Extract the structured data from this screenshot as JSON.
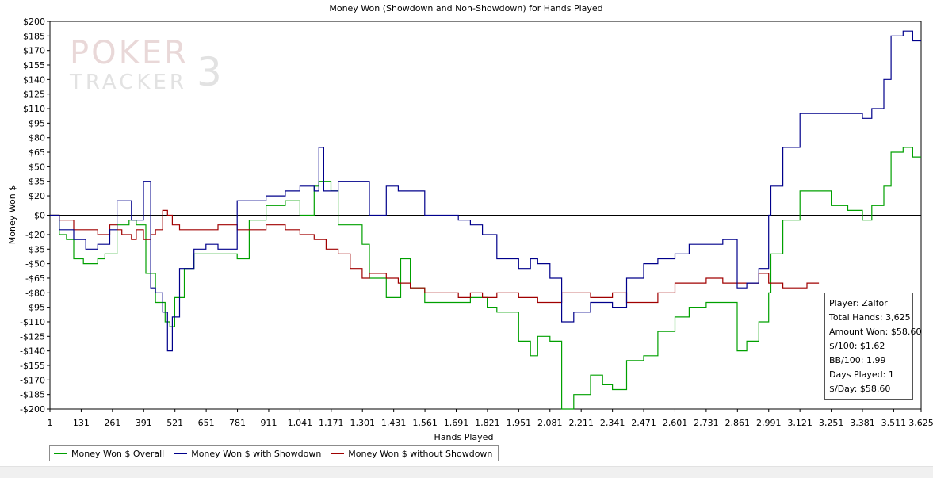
{
  "chart_data": {
    "type": "line",
    "title": "Money Won (Showdown and Non-Showdown) for Hands Played",
    "xlabel": "Hands Played",
    "ylabel": "Money Won $",
    "xlim": [
      1,
      3625
    ],
    "ylim": [
      -200,
      200
    ],
    "x_ticks": [
      1,
      131,
      261,
      391,
      521,
      651,
      781,
      911,
      1041,
      1171,
      1301,
      1431,
      1561,
      1691,
      1821,
      1951,
      2081,
      2211,
      2341,
      2471,
      2601,
      2731,
      2861,
      2991,
      3121,
      3251,
      3381,
      3511,
      3625
    ],
    "x_tick_labels": [
      "1",
      "131",
      "261",
      "391",
      "521",
      "651",
      "781",
      "911",
      "1,041",
      "1,171",
      "1,301",
      "1,431",
      "1,561",
      "1,691",
      "1,821",
      "1,951",
      "2,081",
      "2,211",
      "2,341",
      "2,471",
      "2,601",
      "2,731",
      "2,861",
      "2,991",
      "3,121",
      "3,251",
      "3,381",
      "3,511",
      "3,625"
    ],
    "y_ticks": [
      200,
      185,
      170,
      155,
      140,
      125,
      110,
      95,
      80,
      65,
      50,
      35,
      20,
      0,
      -20,
      -35,
      -50,
      -65,
      -80,
      -95,
      -110,
      -125,
      -140,
      -155,
      -170,
      -185,
      -200
    ],
    "y_tick_labels": [
      "$200",
      "$185",
      "$170",
      "$155",
      "$140",
      "$125",
      "$110",
      "$95",
      "$80",
      "$65",
      "$50",
      "$35",
      "$20",
      "$0",
      "-$20",
      "-$35",
      "-$50",
      "-$65",
      "-$80",
      "-$95",
      "-$110",
      "-$125",
      "-$140",
      "-$155",
      "-$170",
      "-$185",
      "-$200"
    ],
    "zero_line": true,
    "grid": false,
    "legend_position": "bottom-left",
    "series": [
      {
        "name": "Money Won $ Overall",
        "color": "#00a000",
        "x": [
          1,
          40,
          70,
          100,
          140,
          200,
          230,
          280,
          330,
          360,
          400,
          440,
          480,
          500,
          520,
          560,
          600,
          650,
          700,
          780,
          830,
          900,
          980,
          1041,
          1100,
          1120,
          1170,
          1200,
          1300,
          1330,
          1400,
          1460,
          1500,
          1560,
          1600,
          1700,
          1750,
          1820,
          1860,
          1951,
          2000,
          2030,
          2081,
          2130,
          2180,
          2250,
          2300,
          2341,
          2400,
          2471,
          2530,
          2601,
          2660,
          2731,
          2800,
          2860,
          2900,
          2950,
          2991,
          3000,
          3050,
          3121,
          3200,
          3251,
          3320,
          3381,
          3420,
          3470,
          3500,
          3550,
          3590,
          3625
        ],
        "y": [
          0,
          -20,
          -25,
          -45,
          -50,
          -45,
          -40,
          -10,
          -5,
          -10,
          -60,
          -90,
          -110,
          -115,
          -85,
          -55,
          -40,
          -40,
          -40,
          -45,
          -5,
          10,
          15,
          0,
          30,
          35,
          25,
          -10,
          -30,
          -65,
          -85,
          -45,
          -75,
          -90,
          -90,
          -90,
          -85,
          -95,
          -100,
          -130,
          -145,
          -125,
          -130,
          -200,
          -185,
          -165,
          -175,
          -180,
          -150,
          -145,
          -120,
          -105,
          -95,
          -90,
          -90,
          -140,
          -130,
          -110,
          -80,
          -40,
          -5,
          25,
          25,
          10,
          5,
          -5,
          10,
          30,
          65,
          70,
          60,
          60
        ]
      },
      {
        "name": "Money Won $ with Showdown",
        "color": "#00008b",
        "x": [
          1,
          40,
          100,
          150,
          200,
          250,
          280,
          300,
          340,
          360,
          390,
          420,
          440,
          470,
          490,
          510,
          540,
          600,
          650,
          700,
          780,
          830,
          900,
          980,
          1041,
          1100,
          1120,
          1140,
          1200,
          1300,
          1330,
          1400,
          1450,
          1500,
          1560,
          1600,
          1700,
          1750,
          1800,
          1860,
          1951,
          2000,
          2030,
          2081,
          2130,
          2180,
          2250,
          2341,
          2400,
          2471,
          2530,
          2601,
          2660,
          2731,
          2800,
          2860,
          2900,
          2950,
          2991,
          3000,
          3050,
          3121,
          3200,
          3251,
          3320,
          3381,
          3420,
          3470,
          3500,
          3550,
          3590,
          3625
        ],
        "y": [
          0,
          -15,
          -25,
          -35,
          -30,
          -15,
          15,
          15,
          -5,
          -5,
          35,
          -75,
          -80,
          -100,
          -140,
          -105,
          -55,
          -35,
          -30,
          -35,
          15,
          15,
          20,
          25,
          30,
          25,
          70,
          25,
          35,
          35,
          0,
          30,
          25,
          25,
          0,
          0,
          -5,
          -10,
          -20,
          -45,
          -55,
          -45,
          -50,
          -65,
          -110,
          -100,
          -90,
          -95,
          -65,
          -50,
          -45,
          -40,
          -30,
          -30,
          -25,
          -75,
          -70,
          -55,
          0,
          30,
          70,
          105,
          105,
          105,
          105,
          100,
          110,
          140,
          185,
          190,
          180,
          180
        ]
      },
      {
        "name": "Money Won $ without Showdown",
        "color": "#a00000",
        "x": [
          1,
          40,
          100,
          150,
          200,
          250,
          280,
          300,
          340,
          360,
          390,
          420,
          440,
          470,
          490,
          510,
          540,
          600,
          650,
          700,
          780,
          830,
          900,
          980,
          1041,
          1100,
          1150,
          1200,
          1250,
          1300,
          1330,
          1400,
          1450,
          1500,
          1560,
          1600,
          1700,
          1750,
          1800,
          1860,
          1951,
          2000,
          2030,
          2081,
          2130,
          2180,
          2250,
          2341,
          2400,
          2471,
          2530,
          2601,
          2660,
          2731,
          2800,
          2860,
          2900,
          2950,
          2991,
          3050,
          3100,
          3150,
          3200
        ],
        "y": [
          0,
          -5,
          -15,
          -15,
          -20,
          -10,
          -15,
          -20,
          -25,
          -15,
          -25,
          -20,
          -15,
          5,
          0,
          -10,
          -15,
          -15,
          -15,
          -10,
          -15,
          -15,
          -10,
          -15,
          -20,
          -25,
          -35,
          -40,
          -55,
          -65,
          -60,
          -65,
          -70,
          -75,
          -80,
          -80,
          -85,
          -80,
          -85,
          -80,
          -85,
          -85,
          -90,
          -90,
          -80,
          -80,
          -85,
          -80,
          -90,
          -90,
          -80,
          -70,
          -70,
          -65,
          -70,
          -70,
          -70,
          -60,
          -70,
          -75,
          -75,
          -70,
          -70
        ]
      }
    ]
  },
  "info_box": {
    "player": "Player: Zalfor",
    "total_hands": "Total Hands: 3,625",
    "amount_won": "Amount Won: $58.60",
    "dollars_per_100": "$/100: $1.62",
    "bb_per_100": "BB/100: 1.99",
    "days_played": "Days Played: 1",
    "dollars_per_day": "$/Day: $58.60"
  },
  "watermark": {
    "line1": "POKER",
    "line2": "TRACKER",
    "numeral": "3"
  }
}
